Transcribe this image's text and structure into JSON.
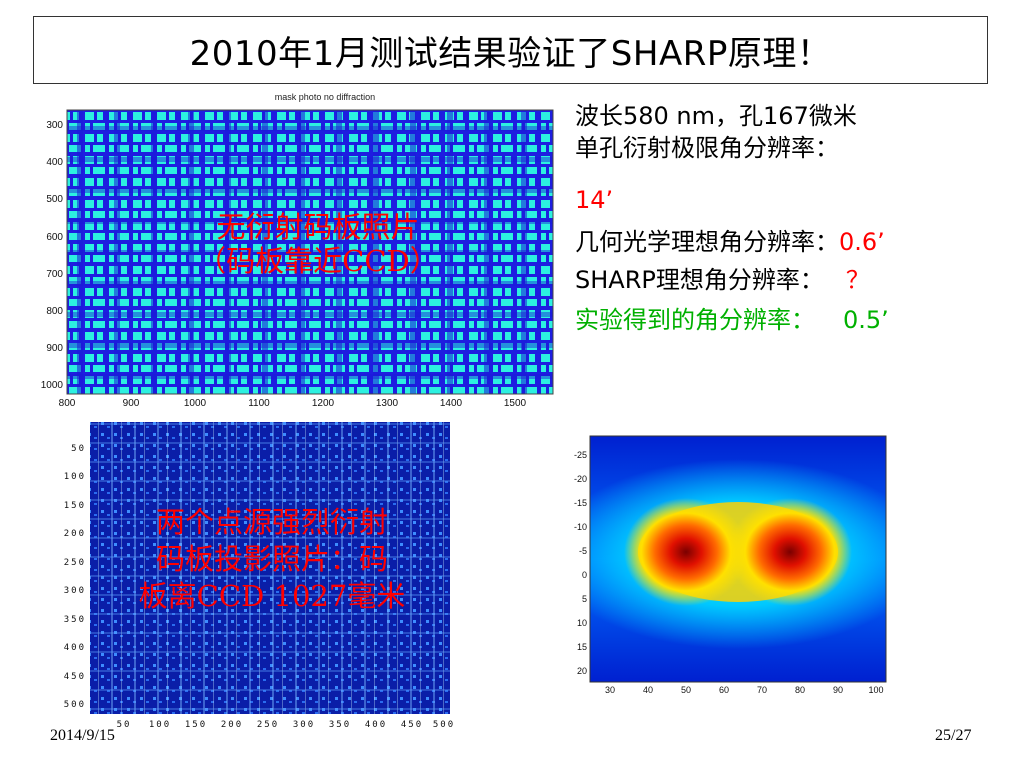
{
  "title": "2010年1月测试结果验证了SHARP原理！",
  "info": {
    "line1": "波长580 nm，孔167微米",
    "line2": "单孔衍射极限角分辨率：",
    "line3": "14’",
    "line4_label": "几何光学理想角分辨率：",
    "line4_value": "0.6’",
    "line5_label": "SHARP理想角分辨率：",
    "line5_value": "？",
    "line6_label": "实验得到的角分辨率：",
    "line6_value": "0.5’"
  },
  "mask_photo": {
    "caption": "mask photo no diffraction",
    "y_ticks": [
      "300",
      "400",
      "500",
      "600",
      "700",
      "800",
      "900",
      "1000"
    ],
    "x_ticks": [
      "800",
      "900",
      "1000",
      "1100",
      "1200",
      "1300",
      "1400",
      "1500"
    ],
    "overlay_line1": "无衍射码板照片",
    "overlay_line2": "（码板靠近CCD）"
  },
  "projection_photo": {
    "y_ticks": [
      "50",
      "100",
      "150",
      "200",
      "250",
      "300",
      "350",
      "400",
      "450",
      "500"
    ],
    "x_ticks": [
      "50",
      "100",
      "150",
      "200",
      "250",
      "300",
      "350",
      "400",
      "450",
      "500"
    ],
    "overlay_line1": "两个点源强烈衍射",
    "overlay_line2": "码板投影照片：码",
    "overlay_line3": "板离CCD 1027毫米"
  },
  "heatmap": {
    "y_ticks": [
      "-25",
      "-20",
      "-15",
      "-10",
      "-5",
      "0",
      "5",
      "10",
      "15",
      "20"
    ],
    "x_ticks": [
      "30",
      "40",
      "50",
      "60",
      "70",
      "80",
      "90",
      "100"
    ]
  },
  "colors": {
    "highlight_red": "#ff0000",
    "highlight_green": "#00b000"
  },
  "footer": {
    "date": "2014/9/15",
    "page": "25/27"
  }
}
